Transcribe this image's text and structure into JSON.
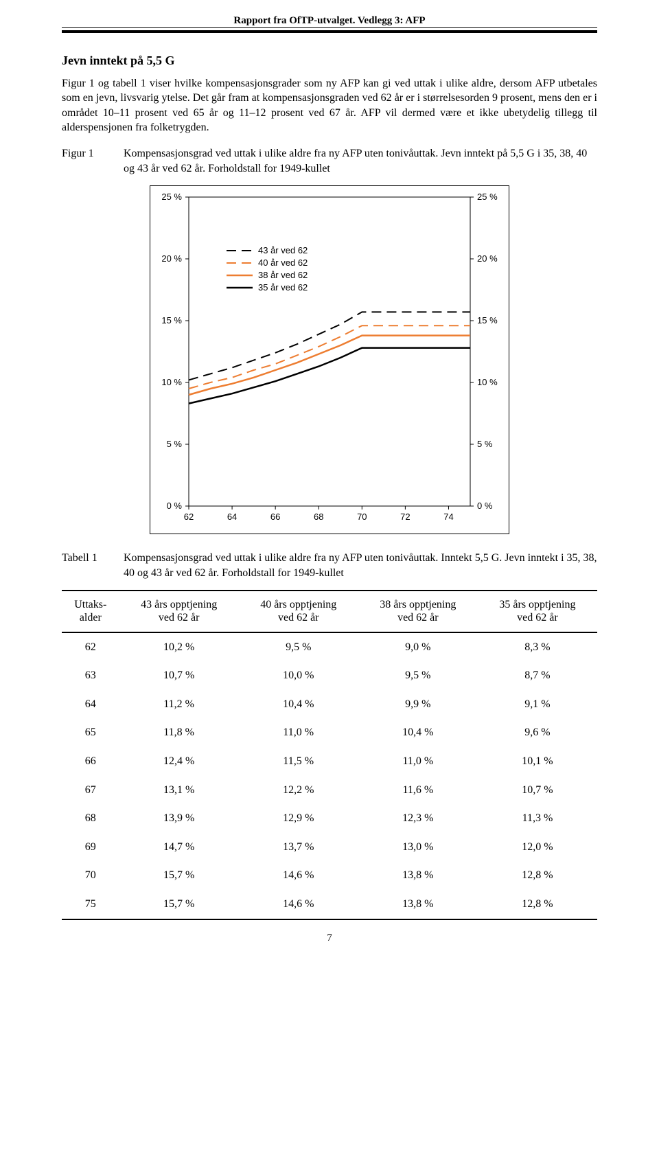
{
  "page": {
    "running_head": "Rapport fra OfTP-utvalget. Vedlegg 3: AFP",
    "section_heading": "Jevn inntekt på 5,5 G",
    "intro_paragraph": "Figur 1 og tabell 1 viser hvilke kompensasjonsgrader som ny AFP kan gi ved uttak i ulike aldre, dersom AFP utbetales som en jevn, livsvarig ytelse. Det går fram at kompensasjonsgraden ved 62 år er i størrelsesorden 9 prosent, mens den er i området 10–11 prosent ved 65 år og 11–12 prosent ved 67 år. AFP vil dermed være et ikke ubetydelig tillegg til alderspensjonen fra folketrygden.",
    "figure_label": "Figur 1",
    "figure_caption": "Kompensasjonsgrad ved uttak i ulike aldre fra ny AFP uten tonivåuttak. Jevn inntekt på 5,5 G i 35, 38, 40 og 43 år ved 62 år. Forholdstall for 1949-kullet",
    "table_label": "Tabell 1",
    "table_caption": "Kompensasjonsgrad ved uttak i ulike aldre fra ny AFP uten tonivåuttak. Inntekt 5,5 G. Jevn inntekt i 35, 38, 40 og 43 år ved 62 år. Forholdstall for 1949-kullet",
    "page_number": "7"
  },
  "chart": {
    "type": "line",
    "xlim": [
      62,
      75
    ],
    "ylim": [
      0,
      25
    ],
    "xticks": [
      62,
      64,
      66,
      68,
      70,
      72,
      74
    ],
    "ytick_step": 5,
    "background_color": "#ffffff",
    "y_label_suffix": " %",
    "legend": {
      "items": [
        {
          "label": "43 år ved 62",
          "color": "#000000",
          "dash": true,
          "width": 2
        },
        {
          "label": "40 år ved 62",
          "color": "#ed7d31",
          "dash": true,
          "width": 2
        },
        {
          "label": "38 år ved 62",
          "color": "#ed7d31",
          "dash": false,
          "width": 2.5
        },
        {
          "label": "35 år ved 62",
          "color": "#000000",
          "dash": false,
          "width": 2.5
        }
      ]
    },
    "series": {
      "s43": {
        "x": [
          62,
          63,
          64,
          65,
          66,
          67,
          68,
          69,
          70,
          75
        ],
        "y": [
          10.2,
          10.7,
          11.2,
          11.8,
          12.4,
          13.1,
          13.9,
          14.7,
          15.7,
          15.7
        ]
      },
      "s40": {
        "x": [
          62,
          63,
          64,
          65,
          66,
          67,
          68,
          69,
          70,
          75
        ],
        "y": [
          9.5,
          10.0,
          10.4,
          11.0,
          11.5,
          12.2,
          12.9,
          13.7,
          14.6,
          14.6
        ]
      },
      "s38": {
        "x": [
          62,
          63,
          64,
          65,
          66,
          67,
          68,
          69,
          70,
          75
        ],
        "y": [
          9.0,
          9.5,
          9.9,
          10.4,
          11.0,
          11.6,
          12.3,
          13.0,
          13.8,
          13.8
        ]
      },
      "s35": {
        "x": [
          62,
          63,
          64,
          65,
          66,
          67,
          68,
          69,
          70,
          75
        ],
        "y": [
          8.3,
          8.7,
          9.1,
          9.6,
          10.1,
          10.7,
          11.3,
          12.0,
          12.8,
          12.8
        ]
      }
    }
  },
  "table": {
    "columns": [
      "Uttaks-\nalder",
      "43 års opptjening\nved 62 år",
      "40 års opptjening\nved 62 år",
      "38 års opptjening\nved 62 år",
      "35 års opptjening\nved 62 år"
    ],
    "rows": [
      [
        "62",
        "10,2 %",
        "9,5 %",
        "9,0 %",
        "8,3 %"
      ],
      [
        "63",
        "10,7 %",
        "10,0 %",
        "9,5 %",
        "8,7 %"
      ],
      [
        "64",
        "11,2 %",
        "10,4 %",
        "9,9 %",
        "9,1 %"
      ],
      [
        "65",
        "11,8 %",
        "11,0 %",
        "10,4 %",
        "9,6 %"
      ],
      [
        "66",
        "12,4 %",
        "11,5 %",
        "11,0 %",
        "10,1 %"
      ],
      [
        "67",
        "13,1 %",
        "12,2 %",
        "11,6 %",
        "10,7 %"
      ],
      [
        "68",
        "13,9 %",
        "12,9 %",
        "12,3 %",
        "11,3 %"
      ],
      [
        "69",
        "14,7 %",
        "13,7 %",
        "13,0 %",
        "12,0 %"
      ],
      [
        "70",
        "15,7 %",
        "14,6 %",
        "13,8 %",
        "12,8 %"
      ],
      [
        "75",
        "15,7 %",
        "14,6 %",
        "13,8 %",
        "12,8 %"
      ]
    ]
  }
}
